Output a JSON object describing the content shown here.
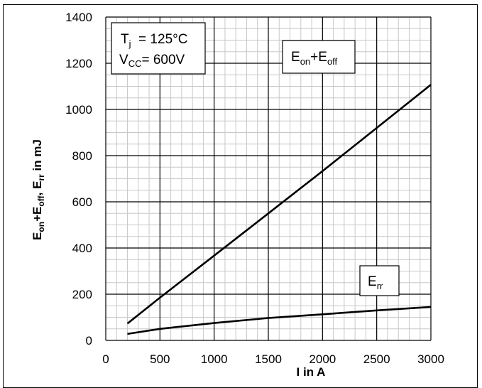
{
  "chart_data": {
    "type": "line",
    "xlabel": "I in A",
    "ylabel_parts": {
      "p1": "E",
      "p1sub": "on",
      "p2": "+E",
      "p2sub": "off",
      "p3": ", E",
      "p3sub": "rr",
      "p4": " in mJ"
    },
    "xlim": [
      0,
      3000
    ],
    "ylim": [
      0,
      1400
    ],
    "x_ticks": [
      "0",
      "500",
      "1000",
      "1500",
      "2000",
      "2500",
      "3000"
    ],
    "y_ticks": [
      "0",
      "200",
      "400",
      "600",
      "800",
      "1000",
      "1200",
      "1400"
    ],
    "grid": true,
    "conditions": {
      "tj_main": "T",
      "tj_sub": "j",
      "tj_value": "  = 125°C",
      "vcc_main": "V",
      "vcc_sub": "CC",
      "vcc_value": "= 600V"
    },
    "series": [
      {
        "name": "Eon+Eoff",
        "label_main": "E",
        "label_sub1": "on",
        "label_mid": "+E",
        "label_sub2": "off",
        "x": [
          200,
          500,
          1000,
          1500,
          2000,
          2500,
          3000
        ],
        "y": [
          73,
          185,
          367,
          550,
          733,
          920,
          1107
        ]
      },
      {
        "name": "Err",
        "label_main": "E",
        "label_sub1": "rr",
        "x": [
          200,
          500,
          1000,
          1500,
          2000,
          2500,
          3000
        ],
        "y": [
          28,
          50,
          75,
          97,
          113,
          130,
          145
        ]
      }
    ]
  }
}
